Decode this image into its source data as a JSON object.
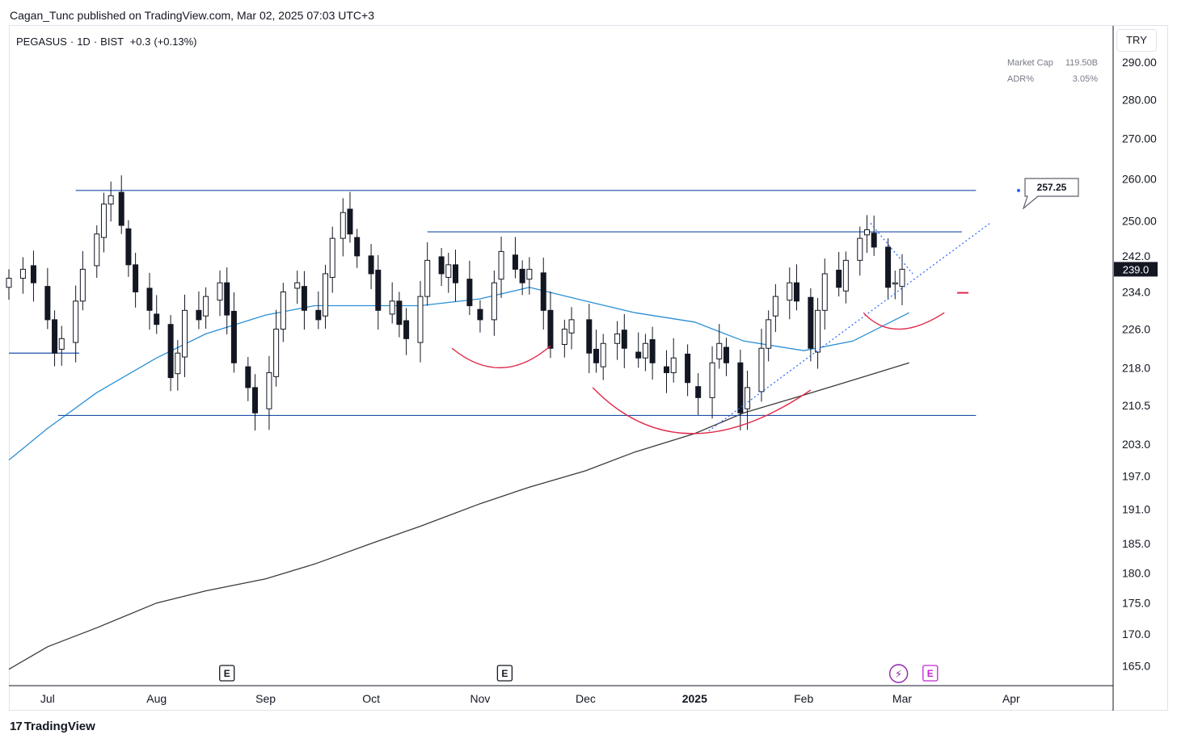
{
  "publish_line": "Cagan_Tunc published on TradingView.com, Mar 02, 2025 07:03 UTC+3",
  "symbol": {
    "name": "PEGASUS",
    "sep1": "·",
    "interval": "1D",
    "sep2": "·",
    "exchange": "BIST",
    "change": "+0.3",
    "change_pct": "(+0.13%)"
  },
  "currency": "TRY",
  "stats": {
    "market_cap_label": "Market Cap",
    "market_cap_value": "119.50B",
    "adr_label": "ADR%",
    "adr_value": "3.05%"
  },
  "footer_brand": "TradingView",
  "footer_brand_mark": "17",
  "chart_data": {
    "type": "candlestick",
    "y_ticks": [
      "290.00",
      "280.00",
      "270.00",
      "260.00",
      "250.00",
      "242.0",
      "234.0",
      "226.0",
      "218.0",
      "210.5",
      "203.0",
      "197.0",
      "191.0",
      "185.0",
      "180.0",
      "175.0",
      "170.0",
      "165.0"
    ],
    "y_tick_values": [
      290,
      280,
      270,
      260,
      250,
      242,
      234,
      226,
      218,
      210.5,
      203,
      197,
      191,
      185,
      180,
      175,
      170,
      165
    ],
    "ylim": [
      162,
      300
    ],
    "x_labels": [
      "Jul",
      "Aug",
      "Sep",
      "Oct",
      "Nov",
      "Dec",
      "2025",
      "Feb",
      "Mar",
      "Apr"
    ],
    "x_label_dates": [
      "2024-07-01",
      "2024-08-01",
      "2024-09-01",
      "2024-10-01",
      "2024-11-01",
      "2024-12-01",
      "2025-01-01",
      "2025-02-01",
      "2025-03-01",
      "2025-04-01"
    ],
    "x_start": "2024-06-20",
    "x_end": "2025-04-30",
    "last_price": "239.0",
    "last_price_value": 239.0,
    "price_label": "257.25",
    "price_label_value": 257.25,
    "earnings_markers": [
      {
        "date": "2024-08-21",
        "label": "E"
      },
      {
        "date": "2024-11-08",
        "label": "E"
      },
      {
        "date": "2025-03-09",
        "label": "E"
      }
    ],
    "dividend_marker": {
      "date": "2025-02-28",
      "label": "⚡"
    },
    "levels": [
      {
        "from": "2024-07-09",
        "to": "2025-03-22",
        "value": 257.25
      },
      {
        "from": "2024-10-17",
        "to": "2025-03-18",
        "value": 247.5
      },
      {
        "from": "2024-07-04",
        "to": "2025-03-22",
        "value": 208.5
      },
      {
        "from": "2024-06-20",
        "to": "2024-07-10",
        "value": 221
      }
    ],
    "trendlines": [
      {
        "from": [
          "2025-01-05",
          205.5
        ],
        "to": [
          "2025-03-26",
          249.5
        ],
        "style": "dotted"
      },
      {
        "from": [
          "2025-02-20",
          249.5
        ],
        "to": [
          "2025-03-04",
          238
        ],
        "style": "dotted"
      }
    ],
    "arcs": [
      {
        "from": [
          "2024-10-24",
          222
        ],
        "mid": [
          "2024-11-07",
          218
        ],
        "to": [
          "2024-11-21",
          222.5
        ]
      },
      {
        "from": [
          "2024-12-03",
          214
        ],
        "mid": [
          "2024-12-31",
          205
        ],
        "to": [
          "2025-02-03",
          213.5
        ]
      },
      {
        "from": [
          "2025-02-18",
          229.5
        ],
        "mid": [
          "2025-02-28",
          226
        ],
        "to": [
          "2025-03-13",
          229.5
        ]
      }
    ],
    "ma_short": [
      [
        "2024-06-20",
        200
      ],
      [
        "2024-07-01",
        206
      ],
      [
        "2024-07-15",
        213
      ],
      [
        "2024-08-01",
        220
      ],
      [
        "2024-08-15",
        225
      ],
      [
        "2024-09-01",
        229
      ],
      [
        "2024-09-15",
        231
      ],
      [
        "2024-10-01",
        231
      ],
      [
        "2024-10-15",
        231
      ],
      [
        "2024-11-01",
        232.5
      ],
      [
        "2024-11-15",
        235
      ],
      [
        "2024-12-01",
        232
      ],
      [
        "2024-12-15",
        229.5
      ],
      [
        "2025-01-01",
        227.5
      ],
      [
        "2025-01-15",
        223.5
      ],
      [
        "2025-02-01",
        221.5
      ],
      [
        "2025-02-15",
        223.5
      ],
      [
        "2025-03-03",
        229.5
      ]
    ],
    "ma_long": [
      [
        "2024-06-20",
        164.5
      ],
      [
        "2024-07-01",
        168
      ],
      [
        "2024-07-15",
        171
      ],
      [
        "2024-08-01",
        175
      ],
      [
        "2024-08-15",
        177
      ],
      [
        "2024-09-01",
        179
      ],
      [
        "2024-09-15",
        181.5
      ],
      [
        "2024-10-01",
        185
      ],
      [
        "2024-10-15",
        188
      ],
      [
        "2024-11-01",
        192
      ],
      [
        "2024-11-15",
        195
      ],
      [
        "2024-12-01",
        198
      ],
      [
        "2024-12-15",
        201.5
      ],
      [
        "2025-01-01",
        205
      ],
      [
        "2025-01-15",
        209
      ],
      [
        "2025-02-01",
        212.5
      ],
      [
        "2025-02-15",
        215.5
      ],
      [
        "2025-03-03",
        219
      ]
    ],
    "candle_closes": [
      [
        "2024-06-20",
        237
      ],
      [
        "2024-06-24",
        239
      ],
      [
        "2024-06-27",
        236
      ],
      [
        "2024-07-01",
        228
      ],
      [
        "2024-07-03",
        221
      ],
      [
        "2024-07-05",
        224
      ],
      [
        "2024-07-09",
        232
      ],
      [
        "2024-07-11",
        239
      ],
      [
        "2024-07-15",
        247
      ],
      [
        "2024-07-17",
        254
      ],
      [
        "2024-07-19",
        256
      ],
      [
        "2024-07-22",
        249
      ],
      [
        "2024-07-24",
        240
      ],
      [
        "2024-07-26",
        234
      ],
      [
        "2024-07-30",
        230
      ],
      [
        "2024-08-01",
        227
      ],
      [
        "2024-08-05",
        216
      ],
      [
        "2024-08-07",
        221
      ],
      [
        "2024-08-09",
        230
      ],
      [
        "2024-08-13",
        228
      ],
      [
        "2024-08-15",
        233
      ],
      [
        "2024-08-19",
        236
      ],
      [
        "2024-08-21",
        229
      ],
      [
        "2024-08-23",
        219
      ],
      [
        "2024-08-27",
        214
      ],
      [
        "2024-08-29",
        209
      ],
      [
        "2024-09-02",
        217
      ],
      [
        "2024-09-04",
        226
      ],
      [
        "2024-09-06",
        234
      ],
      [
        "2024-09-10",
        236
      ],
      [
        "2024-09-12",
        230
      ],
      [
        "2024-09-16",
        228
      ],
      [
        "2024-09-18",
        238
      ],
      [
        "2024-09-20",
        246
      ],
      [
        "2024-09-23",
        252
      ],
      [
        "2024-09-25",
        247
      ],
      [
        "2024-09-27",
        242
      ],
      [
        "2024-10-01",
        238
      ],
      [
        "2024-10-03",
        230
      ],
      [
        "2024-10-07",
        232
      ],
      [
        "2024-10-09",
        227
      ],
      [
        "2024-10-11",
        224
      ],
      [
        "2024-10-15",
        233
      ],
      [
        "2024-10-17",
        241
      ],
      [
        "2024-10-21",
        238
      ],
      [
        "2024-10-23",
        240
      ],
      [
        "2024-10-25",
        236
      ],
      [
        "2024-10-29",
        231
      ],
      [
        "2024-11-01",
        228
      ],
      [
        "2024-11-05",
        236
      ],
      [
        "2024-11-07",
        243
      ],
      [
        "2024-11-11",
        239
      ],
      [
        "2024-11-13",
        236
      ],
      [
        "2024-11-15",
        239
      ],
      [
        "2024-11-19",
        230
      ],
      [
        "2024-11-21",
        222
      ],
      [
        "2024-11-25",
        226
      ],
      [
        "2024-11-27",
        228
      ],
      [
        "2024-12-02",
        221
      ],
      [
        "2024-12-04",
        219
      ],
      [
        "2024-12-06",
        223
      ],
      [
        "2024-12-10",
        225
      ],
      [
        "2024-12-12",
        222
      ],
      [
        "2024-12-16",
        220
      ],
      [
        "2024-12-18",
        223
      ],
      [
        "2024-12-20",
        219
      ],
      [
        "2024-12-24",
        217
      ],
      [
        "2024-12-26",
        220
      ],
      [
        "2024-12-30",
        215
      ],
      [
        "2025-01-02",
        212
      ],
      [
        "2025-01-06",
        219
      ],
      [
        "2025-01-08",
        223
      ],
      [
        "2025-01-10",
        219
      ],
      [
        "2025-01-14",
        209
      ],
      [
        "2025-01-16",
        214
      ],
      [
        "2025-01-20",
        222
      ],
      [
        "2025-01-22",
        228
      ],
      [
        "2025-01-24",
        233
      ],
      [
        "2025-01-28",
        236
      ],
      [
        "2025-01-30",
        232
      ],
      [
        "2025-02-03",
        222
      ],
      [
        "2025-02-05",
        230
      ],
      [
        "2025-02-07",
        238
      ],
      [
        "2025-02-11",
        235
      ],
      [
        "2025-02-13",
        241
      ],
      [
        "2025-02-17",
        246
      ],
      [
        "2025-02-19",
        248
      ],
      [
        "2025-02-21",
        244
      ],
      [
        "2025-02-25",
        235
      ],
      [
        "2025-02-27",
        236
      ],
      [
        "2025-03-01",
        239
      ]
    ]
  }
}
